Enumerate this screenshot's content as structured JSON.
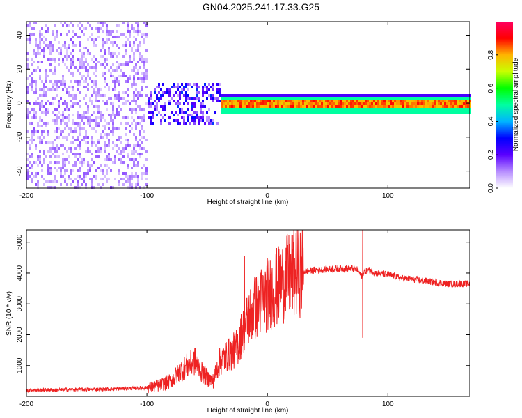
{
  "title": "GN04.2025.241.17.33.G25",
  "chart_data": [
    {
      "type": "heatmap",
      "xlabel": "Height of straight line (km)",
      "ylabel": "Frequency (Hz)",
      "xlim": [
        -200,
        168
      ],
      "ylim": [
        -50,
        48
      ],
      "xticks": [
        -200,
        -100,
        0,
        100
      ],
      "xtick_labels": [
        "-200",
        "-100",
        "0",
        "100"
      ],
      "yticks": [
        -40,
        -20,
        0,
        20,
        40
      ],
      "ytick_labels": [
        "-40",
        "-20",
        "0",
        "20",
        "40"
      ],
      "colorbar": {
        "label": "Normalized spectral amplitude",
        "range": [
          0,
          1
        ],
        "ticks": [
          0.0,
          0.2,
          0.4,
          0.6,
          0.8
        ],
        "tick_labels": [
          "0.0",
          "0.2",
          "0.4",
          "0.6",
          "0.8"
        ],
        "colors": [
          "#ffffff",
          "#b68cff",
          "#5a00ff",
          "#0000ff",
          "#00b4ff",
          "#00ffa0",
          "#00ff00",
          "#c8ff00",
          "#ffb400",
          "#ff0000",
          "#ff0060"
        ]
      },
      "features": [
        {
          "name": "broadband noise",
          "x_range": [
            -200,
            -100
          ],
          "freq_range": [
            -50,
            48
          ],
          "amplitude": 0.15
        },
        {
          "name": "transition scatter",
          "x_range": [
            -100,
            -40
          ],
          "freq_range": [
            -12,
            12
          ],
          "amplitude": 0.35
        },
        {
          "name": "carrier tone",
          "x_range": [
            -40,
            168
          ],
          "freq_center": 0,
          "amplitude": 0.9
        }
      ]
    },
    {
      "type": "line",
      "xlabel": "Height of straight line (km)",
      "ylabel": "SNR (10 * v/v)",
      "xlim": [
        -200,
        168
      ],
      "ylim": [
        0,
        5400
      ],
      "xticks": [
        -200,
        -100,
        0,
        100
      ],
      "xtick_labels": [
        "-200",
        "-100",
        "0",
        "100"
      ],
      "yticks": [
        1000,
        2000,
        3000,
        4000,
        5000
      ],
      "ytick_labels": [
        "1000",
        "2000",
        "3000",
        "4000",
        "5000"
      ],
      "color": "#ee2222",
      "series": [
        {
          "name": "SNR",
          "x": [
            -200,
            -180,
            -160,
            -140,
            -120,
            -100,
            -90,
            -80,
            -70,
            -60,
            -55,
            -50,
            -45,
            -40,
            -35,
            -30,
            -25,
            -20,
            -15,
            -10,
            -5,
            0,
            5,
            10,
            15,
            20,
            25,
            30,
            40,
            50,
            60,
            70,
            75,
            78,
            80,
            85,
            90,
            100,
            110,
            120,
            130,
            140,
            150,
            160,
            168
          ],
          "y": [
            200,
            210,
            220,
            230,
            250,
            280,
            350,
            500,
            900,
            1150,
            800,
            600,
            500,
            1100,
            1300,
            1400,
            1600,
            2200,
            2600,
            2900,
            3100,
            3300,
            3450,
            3600,
            3800,
            3950,
            4020,
            4050,
            4100,
            4120,
            4150,
            4150,
            4100,
            3900,
            4050,
            4100,
            4000,
            3950,
            3850,
            3800,
            3750,
            3700,
            3650,
            3650,
            3650
          ]
        }
      ],
      "spikes": [
        {
          "x": -19,
          "y": 4550
        },
        {
          "x": 79,
          "y": 5400
        },
        {
          "x": 79,
          "y": 1900
        }
      ]
    }
  ]
}
